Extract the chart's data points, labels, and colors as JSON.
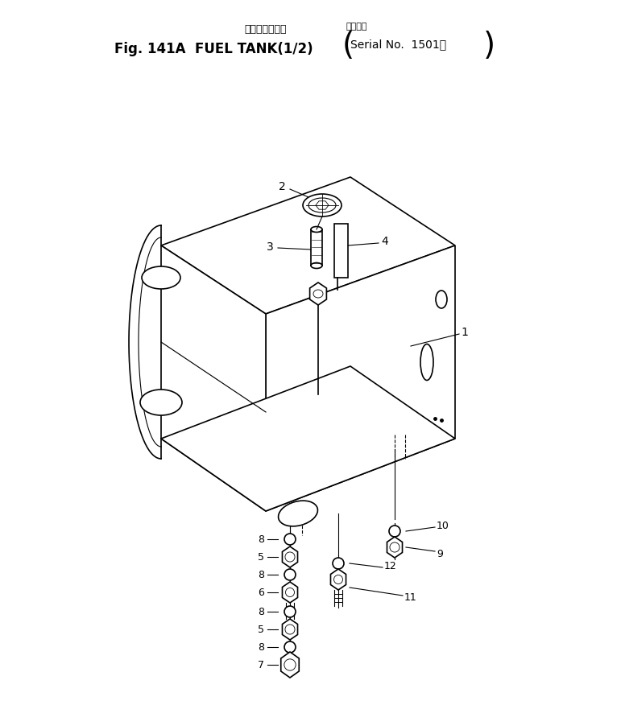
{
  "title_japanese": "フェエルタンク",
  "title_english": "Fig. 141A  FUEL TANK(1/2)",
  "title_serial_japanese": "適用号機",
  "title_serial": "Serial No.  1501～",
  "bg_color": "#ffffff",
  "line_color": "#000000"
}
